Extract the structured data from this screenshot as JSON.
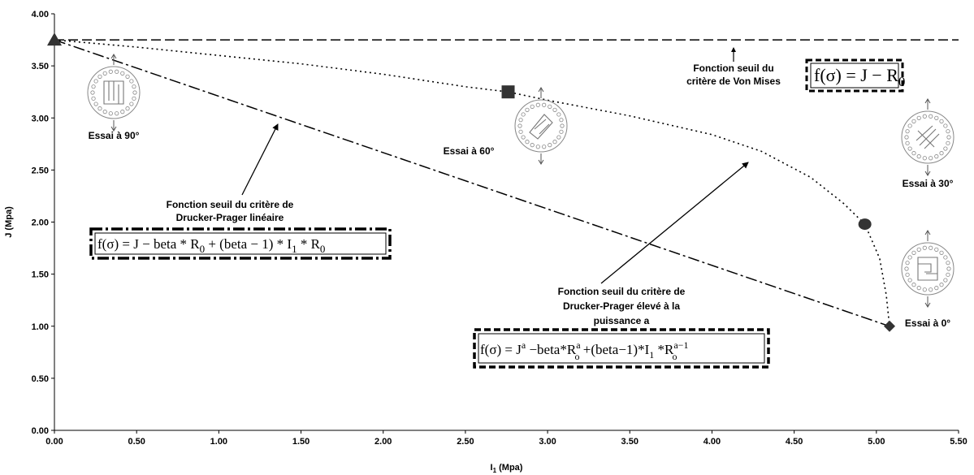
{
  "chart_data": {
    "type": "line",
    "xlabel": "I1 (Mpa)",
    "xlabel_main": "I",
    "xlabel_sub": "1",
    "xlabel_rest": " (Mpa)",
    "ylabel": "J (Mpa)",
    "xlim": [
      0,
      5.5
    ],
    "ylim": [
      0,
      4.0
    ],
    "x_ticks": [
      "0.00",
      "0.50",
      "1.00",
      "1.50",
      "2.00",
      "2.50",
      "3.00",
      "3.50",
      "4.00",
      "4.50",
      "5.00",
      "5.50"
    ],
    "y_ticks": [
      "0.00",
      "0.50",
      "1.00",
      "1.50",
      "2.00",
      "2.50",
      "3.00",
      "3.50",
      "4.00"
    ],
    "grid": false,
    "legend": "none",
    "series": [
      {
        "style": "dashed",
        "x": [
          0,
          5.5
        ],
        "y": [
          3.75,
          3.75
        ]
      },
      {
        "style": "dash-dot",
        "x": [
          0,
          5.08
        ],
        "y": [
          3.75,
          1.0
        ]
      },
      {
        "style": "dotted",
        "x": [
          0,
          0.5,
          1.0,
          1.5,
          2.0,
          2.5,
          2.76,
          3.0,
          3.5,
          4.0,
          4.3,
          4.6,
          4.8,
          4.93,
          5.02,
          5.06,
          5.08
        ],
        "y": [
          3.75,
          3.68,
          3.6,
          3.52,
          3.42,
          3.3,
          3.25,
          3.17,
          3.02,
          2.84,
          2.68,
          2.43,
          2.18,
          1.98,
          1.65,
          1.3,
          1.0
        ]
      }
    ],
    "points": [
      {
        "label": "Essai à 90°",
        "marker": "triangle",
        "x": 0.0,
        "y": 3.75
      },
      {
        "label": "Essai à 60°",
        "marker": "square",
        "x": 2.76,
        "y": 3.25
      },
      {
        "label": "Essai à 30°",
        "marker": "circle",
        "x": 4.93,
        "y": 1.98
      },
      {
        "label": "Essai à 0°",
        "marker": "diamond",
        "x": 5.08,
        "y": 1.0
      }
    ],
    "annotations": {
      "von_mises": [
        "Fonction seuil du",
        "critère de Von Mises"
      ],
      "dp_linear": [
        "Fonction seuil du critère de",
        "Drucker-Prager linéaire"
      ],
      "dp_power": [
        "Fonction seuil du critère de",
        "Drucker-Prager élevé à la",
        "puissance a"
      ]
    },
    "formulas": {
      "von_mises": "f(σ) = J − R0",
      "dp_linear": "f(σ) = J − beta * R0 + (beta − 1) * I1 * R0",
      "dp_power": "f(σ) = J^a − beta*R0^a + (beta−1)*I1*R0^(a−1)"
    },
    "colors": {
      "line": "#000000",
      "marker": "#333333",
      "background": "#ffffff"
    }
  }
}
